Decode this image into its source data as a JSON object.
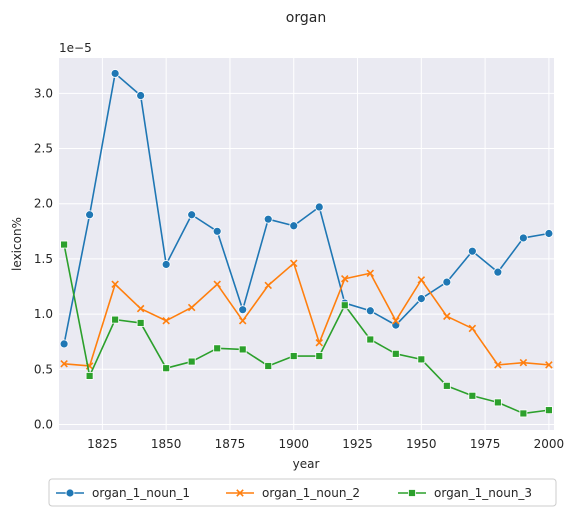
{
  "chart_data": {
    "type": "line",
    "title": "organ",
    "xlabel": "year",
    "ylabel": "lexicon%",
    "y_multiplier_label": "1e−5",
    "xlim": [
      1808,
      2002
    ],
    "ylim": [
      -0.05,
      3.32
    ],
    "x_ticks": [
      1825,
      1850,
      1875,
      1900,
      1925,
      1950,
      1975,
      2000
    ],
    "y_ticks": [
      0.0,
      0.5,
      1.0,
      1.5,
      2.0,
      2.5,
      3.0
    ],
    "y_tick_labels": [
      "0.0",
      "0.5",
      "1.0",
      "1.5",
      "2.0",
      "2.5",
      "3.0"
    ],
    "grid": true,
    "legend_position": "bottom-center",
    "x": [
      1810,
      1820,
      1830,
      1840,
      1850,
      1860,
      1870,
      1880,
      1890,
      1900,
      1910,
      1920,
      1930,
      1940,
      1950,
      1960,
      1970,
      1980,
      1990,
      2000
    ],
    "series": [
      {
        "name": "organ_1_noun_1",
        "color": "#1f77b4",
        "marker": "circle",
        "values": [
          0.73,
          1.9,
          3.18,
          2.98,
          1.45,
          1.9,
          1.75,
          1.04,
          1.86,
          1.8,
          1.97,
          1.1,
          1.03,
          0.9,
          1.14,
          1.29,
          1.57,
          1.38,
          1.69,
          1.73
        ]
      },
      {
        "name": "organ_1_noun_2",
        "color": "#ff7f0e",
        "marker": "x",
        "values": [
          0.55,
          0.53,
          1.27,
          1.05,
          0.94,
          1.06,
          1.27,
          0.94,
          1.26,
          1.46,
          0.74,
          1.32,
          1.37,
          0.94,
          1.31,
          0.98,
          0.87,
          0.54,
          0.56,
          0.54
        ]
      },
      {
        "name": "organ_1_noun_3",
        "color": "#2ca02c",
        "marker": "square",
        "values": [
          1.63,
          0.44,
          0.95,
          0.92,
          0.51,
          0.57,
          0.69,
          0.68,
          0.53,
          0.62,
          0.62,
          1.08,
          0.77,
          0.64,
          0.59,
          0.35,
          0.26,
          0.2,
          0.1,
          0.13
        ]
      }
    ]
  }
}
